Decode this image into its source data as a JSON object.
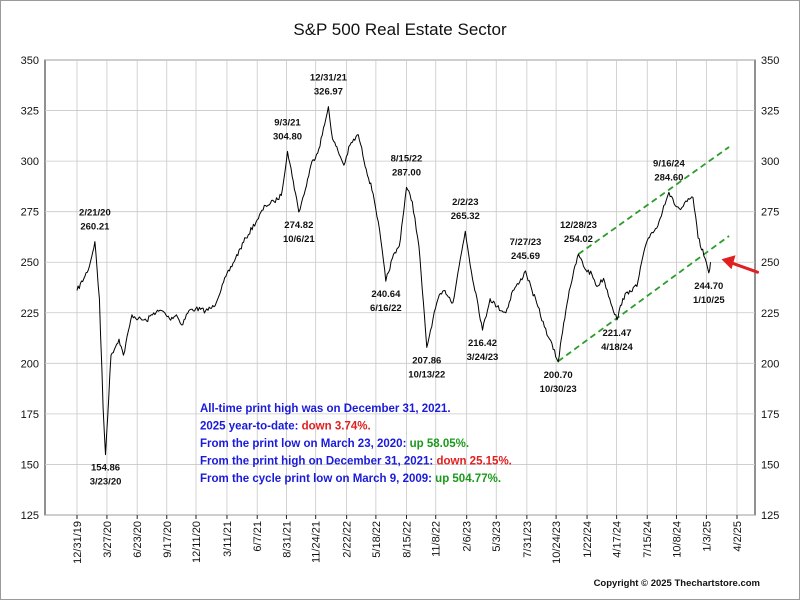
{
  "chart_data": {
    "type": "line",
    "title": "S&P 500 Real Estate Sector",
    "ylim": [
      125,
      350
    ],
    "yticks": [
      125,
      150,
      175,
      200,
      225,
      250,
      275,
      300,
      325,
      350
    ],
    "xlim": [
      "2019-12-31",
      "2025-04-02"
    ],
    "xticks": [
      "12/31/19",
      "3/27/20",
      "6/23/20",
      "9/17/20",
      "12/11/20",
      "3/11/21",
      "6/7/21",
      "8/31/21",
      "11/24/21",
      "2/22/22",
      "5/18/22",
      "8/15/22",
      "11/8/22",
      "2/6/23",
      "5/3/23",
      "7/31/23",
      "10/24/23",
      "1/22/24",
      "4/17/24",
      "7/15/24",
      "10/8/24",
      "1/3/25",
      "4/2/25"
    ],
    "grid": true,
    "series": [
      {
        "color": "#000000",
        "x": [
          "2019-12-31",
          "2020-01-20",
          "2020-02-05",
          "2020-02-21",
          "2020-03-05",
          "2020-03-16",
          "2020-03-23",
          "2020-04-08",
          "2020-05-01",
          "2020-05-14",
          "2020-06-08",
          "2020-06-26",
          "2020-07-20",
          "2020-08-10",
          "2020-09-04",
          "2020-09-25",
          "2020-10-15",
          "2020-10-30",
          "2020-11-20",
          "2020-12-10",
          "2021-01-08",
          "2021-02-01",
          "2021-03-01",
          "2021-04-05",
          "2021-05-05",
          "2021-06-07",
          "2021-07-01",
          "2021-07-26",
          "2021-08-16",
          "2021-09-03",
          "2021-09-20",
          "2021-10-06",
          "2021-10-25",
          "2021-11-10",
          "2021-12-03",
          "2021-12-20",
          "2021-12-31",
          "2022-01-12",
          "2022-01-28",
          "2022-02-14",
          "2022-03-04",
          "2022-03-28",
          "2022-04-20",
          "2022-05-10",
          "2022-05-25",
          "2022-06-16",
          "2022-07-05",
          "2022-07-25",
          "2022-08-15",
          "2022-09-01",
          "2022-09-20",
          "2022-10-13",
          "2022-10-31",
          "2022-11-15",
          "2022-12-05",
          "2022-12-28",
          "2023-01-15",
          "2023-02-02",
          "2023-02-20",
          "2023-03-08",
          "2023-03-24",
          "2023-04-15",
          "2023-05-05",
          "2023-05-31",
          "2023-06-20",
          "2023-07-10",
          "2023-07-27",
          "2023-08-15",
          "2023-09-01",
          "2023-09-20",
          "2023-10-05",
          "2023-10-30",
          "2023-11-15",
          "2023-12-01",
          "2023-12-28",
          "2024-01-15",
          "2024-02-05",
          "2024-02-20",
          "2024-03-10",
          "2024-03-28",
          "2024-04-18",
          "2024-05-05",
          "2024-05-25",
          "2024-06-15",
          "2024-07-05",
          "2024-07-25",
          "2024-08-15",
          "2024-09-01",
          "2024-09-16",
          "2024-10-01",
          "2024-10-20",
          "2024-11-08",
          "2024-11-25",
          "2024-12-10",
          "2024-12-30",
          "2025-01-10",
          "2025-01-15"
        ],
        "values": [
          236,
          242,
          248,
          260.21,
          232,
          178,
          154.86,
          204,
          212,
          204,
          224,
          222,
          221,
          225,
          226,
          222,
          224,
          219,
          226,
          227,
          226,
          228,
          240,
          252,
          262,
          271,
          278,
          280,
          283,
          304.8,
          290,
          274.82,
          286,
          298,
          306,
          318,
          326.97,
          311,
          305,
          298,
          308,
          313,
          296,
          284,
          270,
          240.64,
          252,
          258,
          287.0,
          280,
          258,
          207.86,
          222,
          232,
          236,
          230,
          248,
          265.32,
          245,
          232,
          216.42,
          232,
          228,
          225,
          236,
          240,
          245.69,
          236,
          228,
          218,
          212,
          200.7,
          220,
          236,
          254.02,
          247,
          244,
          238,
          242,
          232,
          221.47,
          232,
          236,
          238,
          255,
          264,
          268,
          278,
          284.6,
          279,
          276,
          280,
          282,
          262,
          252,
          244.7,
          250
        ]
      }
    ],
    "annotations": [
      {
        "date": "2/21/20",
        "value": "260.21",
        "x": "2020-02-21",
        "y": 260.21,
        "pos": "above"
      },
      {
        "date": "3/23/20",
        "value": "154.86",
        "x": "2020-03-23",
        "y": 154.86,
        "pos": "below"
      },
      {
        "date": "9/3/21",
        "value": "304.80",
        "x": "2021-09-03",
        "y": 304.8,
        "pos": "above"
      },
      {
        "date": "10/6/21",
        "value": "274.82",
        "x": "2021-10-06",
        "y": 274.82,
        "pos": "below"
      },
      {
        "date": "12/31/21",
        "value": "326.97",
        "x": "2021-12-31",
        "y": 326.97,
        "pos": "above"
      },
      {
        "date": "8/15/22",
        "value": "287.00",
        "x": "2022-08-15",
        "y": 287.0,
        "pos": "above"
      },
      {
        "date": "6/16/22",
        "value": "240.64",
        "x": "2022-06-16",
        "y": 240.64,
        "pos": "below"
      },
      {
        "date": "10/13/22",
        "value": "207.86",
        "x": "2022-10-13",
        "y": 207.86,
        "pos": "below"
      },
      {
        "date": "2/2/23",
        "value": "265.32",
        "x": "2023-02-02",
        "y": 265.32,
        "pos": "above"
      },
      {
        "date": "3/24/23",
        "value": "216.42",
        "x": "2023-03-24",
        "y": 216.42,
        "pos": "below"
      },
      {
        "date": "7/27/23",
        "value": "245.69",
        "x": "2023-07-27",
        "y": 245.69,
        "pos": "above"
      },
      {
        "date": "10/30/23",
        "value": "200.70",
        "x": "2023-10-30",
        "y": 200.7,
        "pos": "below"
      },
      {
        "date": "12/28/23",
        "value": "254.02",
        "x": "2023-12-28",
        "y": 254.02,
        "pos": "above"
      },
      {
        "date": "4/18/24",
        "value": "221.47",
        "x": "2024-04-18",
        "y": 221.47,
        "pos": "below"
      },
      {
        "date": "9/16/24",
        "value": "284.60",
        "x": "2024-09-16",
        "y": 284.6,
        "pos": "above"
      },
      {
        "date": "1/10/25",
        "value": "244.70",
        "x": "2025-01-10",
        "y": 244.7,
        "pos": "below"
      }
    ],
    "trend_channel": {
      "color": "#2a9d2a",
      "upper": {
        "x": [
          "2023-12-28",
          "2025-03-10"
        ],
        "y": [
          254,
          307
        ]
      },
      "lower": {
        "x": [
          "2023-10-30",
          "2025-03-10"
        ],
        "y": [
          201,
          263
        ]
      }
    },
    "arrow": {
      "color": "#e02020",
      "x": "2025-01-12",
      "y": 251
    },
    "stats": [
      [
        {
          "text": "All-time print high was on December 31, 2021.",
          "color": "#1a1adb"
        }
      ],
      [
        {
          "text": "2025 year-to-date: ",
          "color": "#1a1adb"
        },
        {
          "text": "down 3.74%.",
          "color": "#e02020"
        }
      ],
      [
        {
          "text": "From the print low on March 23, 2020:  ",
          "color": "#1a1adb"
        },
        {
          "text": "up 58.05%.",
          "color": "#1a9a1a"
        }
      ],
      [
        {
          "text": "From the print high on December 31, 2021:  ",
          "color": "#1a1adb"
        },
        {
          "text": "down 25.15%.",
          "color": "#e02020"
        }
      ],
      [
        {
          "text": "From the cycle print low on March 9, 2009:  ",
          "color": "#1a1adb"
        },
        {
          "text": "up 504.77%.",
          "color": "#1a9a1a"
        }
      ]
    ],
    "copyright": "Copyright © 2025 Thechartstore.com"
  }
}
